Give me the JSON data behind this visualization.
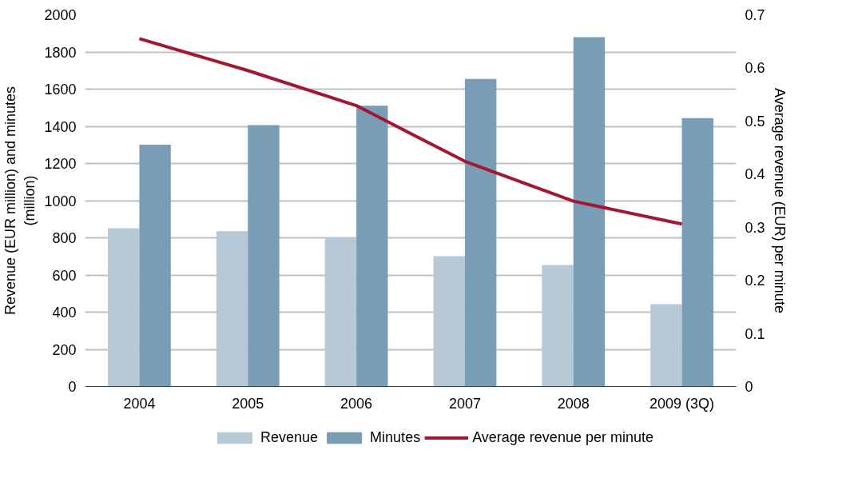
{
  "chart_data": {
    "type": "bar",
    "categories": [
      "2004",
      "2005",
      "2006",
      "2007",
      "2008",
      "2009 (3Q)"
    ],
    "ylabel": "Revenue (EUR million) and minutes (million)",
    "y2label": "Average revenue (EUR) per minute",
    "ylim": [
      0,
      2000
    ],
    "yticks": [
      0,
      200,
      400,
      600,
      800,
      1000,
      1200,
      1400,
      1600,
      1800,
      2000
    ],
    "y2lim": [
      0,
      0.7
    ],
    "y2ticks": [
      0,
      0.1,
      0.2,
      0.3,
      0.4,
      0.5,
      0.6,
      0.7
    ],
    "grid": "y",
    "legend": "bottom",
    "series": [
      {
        "name": "Revenue",
        "color": "#b7c9d6",
        "values": [
          852,
          836,
          802,
          701,
          654,
          443
        ]
      },
      {
        "name": "Minutes",
        "color": "#7a9db6",
        "values": [
          1301,
          1406,
          1511,
          1655,
          1880,
          1444
        ]
      },
      {
        "name": "Average revenue per minute",
        "type": "line",
        "axis": "y2",
        "color": "#a31830",
        "values": [
          0.655,
          0.595,
          0.529,
          0.424,
          0.349,
          0.306
        ]
      }
    ]
  }
}
